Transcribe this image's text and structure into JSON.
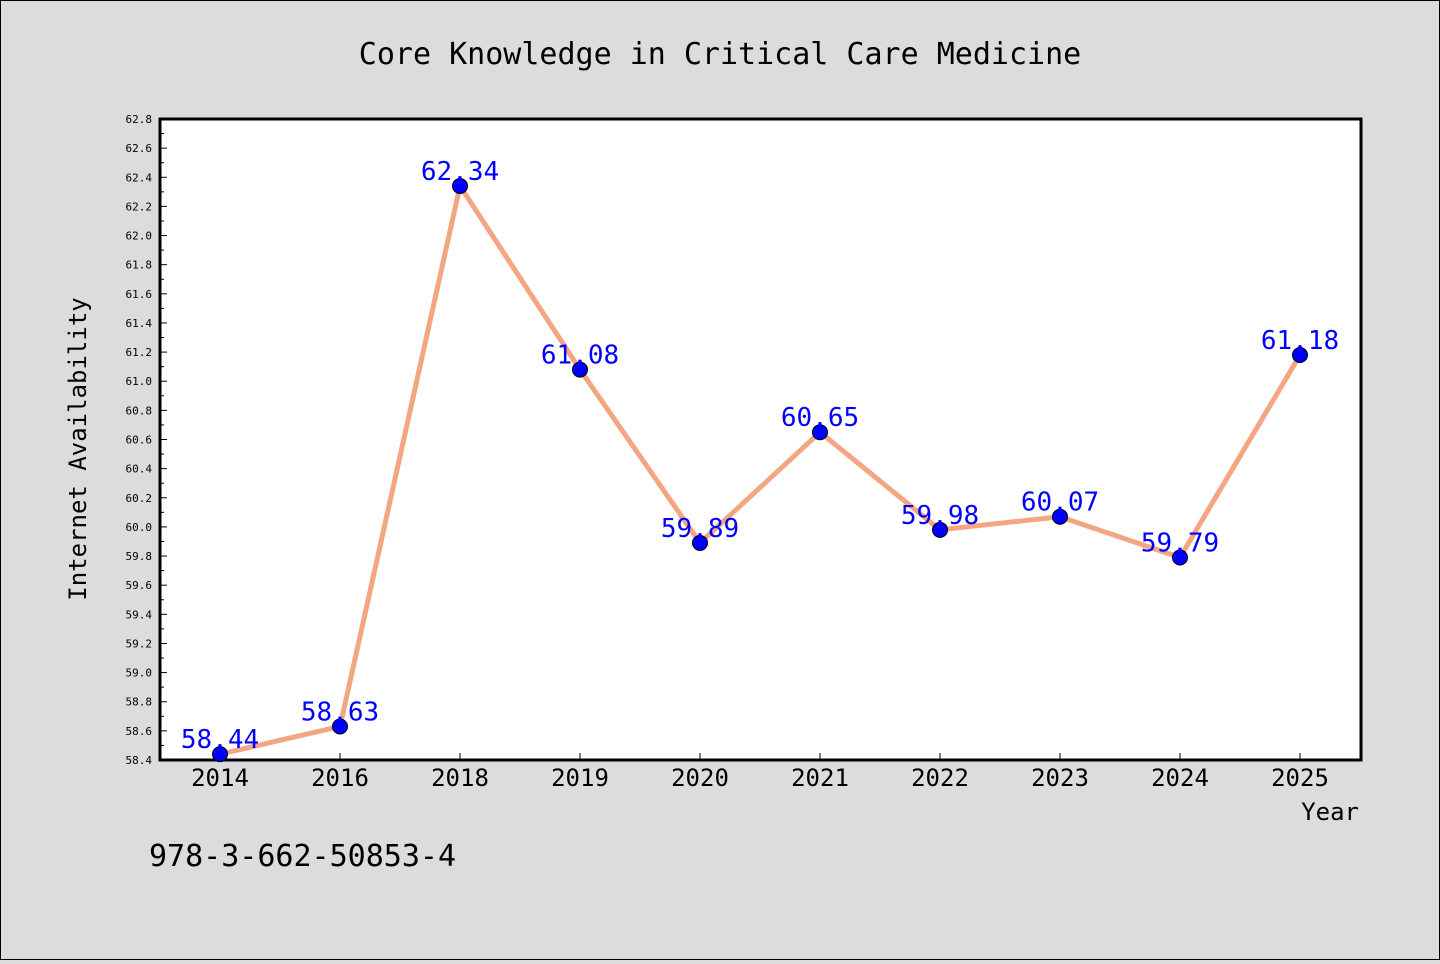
{
  "chart_data": {
    "type": "line",
    "title": "Core Knowledge in Critical Care Medicine",
    "xlabel": "Year",
    "ylabel": "Internet Availability",
    "categories": [
      "2014",
      "2016",
      "2018",
      "2019",
      "2020",
      "2021",
      "2022",
      "2023",
      "2024",
      "2025"
    ],
    "series": [
      {
        "values": [
          58.44,
          58.63,
          62.34,
          61.08,
          59.89,
          60.65,
          59.98,
          60.07,
          59.79,
          61.18
        ],
        "data_labels": [
          "58.44",
          "58.63",
          "62.34",
          "61.08",
          "59.89",
          "60.65",
          "59.98",
          "60.07",
          "59.79",
          "61.18"
        ]
      }
    ],
    "ylim": [
      58.4,
      62.8
    ],
    "yticks": [
      "58.4",
      "58.6",
      "58.8",
      "59.0",
      "59.2",
      "59.4",
      "59.6",
      "59.8",
      "60.0",
      "60.2",
      "60.4",
      "60.6",
      "60.8",
      "61.0",
      "61.2",
      "61.4",
      "61.6",
      "61.8",
      "62.0",
      "62.2",
      "62.4",
      "62.6",
      "62.8"
    ],
    "grid": false,
    "legend": "none",
    "colors": {
      "line": "#f4a582",
      "marker": "#0000ff",
      "label": "#0000ff",
      "background": "#dcdcdc",
      "plot_background": "#ffffff"
    }
  },
  "footer": {
    "isbn": "978-3-662-50853-4"
  }
}
